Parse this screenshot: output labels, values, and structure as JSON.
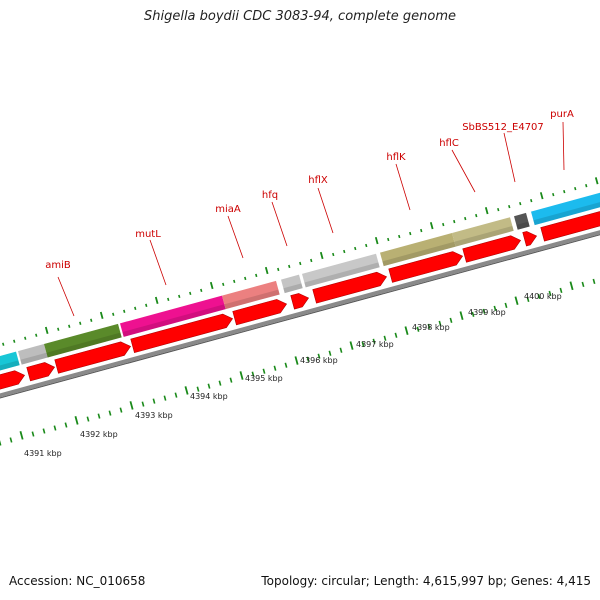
{
  "title": "Shigella boydii CDC 3083-94, complete genome",
  "accession": "Accession: NC_010658",
  "summary": "Topology: circular; Length: 4,615,997 bp; Genes: 4,415",
  "colors": {
    "gene_label": "#cc0000",
    "cds": "#ff0000",
    "backbone": "#888888",
    "tick": "#1a8a1a"
  },
  "gene_labels": [
    "amiB",
    "mutL",
    "miaA",
    "hfq",
    "hflX",
    "hflK",
    "hflC",
    "SbBS512_E4707",
    "purA"
  ],
  "kbp_labels": [
    "4391 kbp",
    "4392 kbp",
    "4393 kbp",
    "4394 kbp",
    "4395 kbp",
    "4396 kbp",
    "4397 kbp",
    "4398 kbp",
    "4399 kbp",
    "4400 kbp"
  ]
}
